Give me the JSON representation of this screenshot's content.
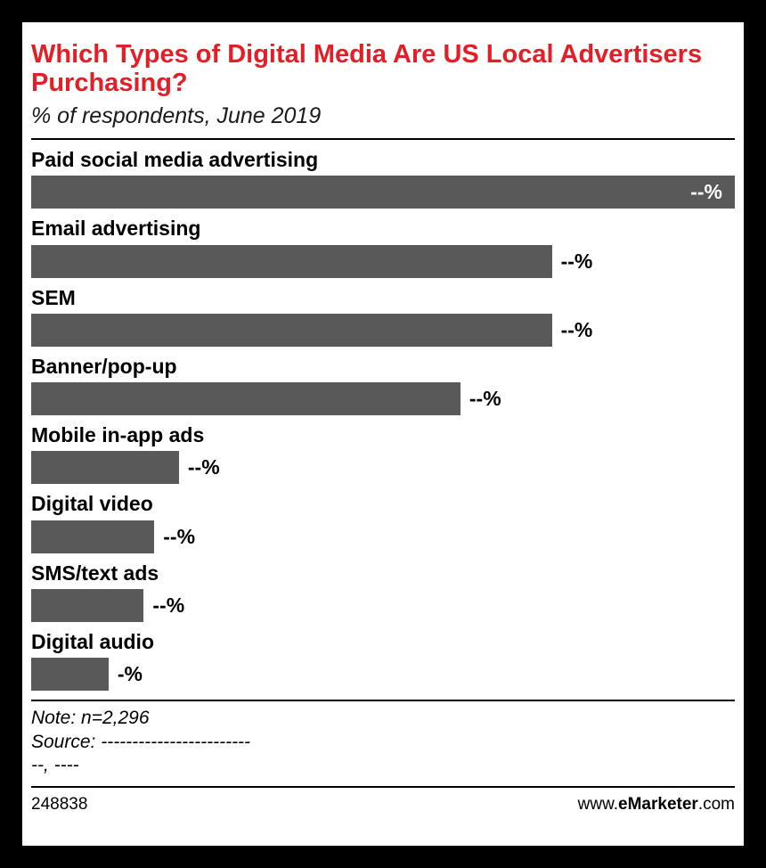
{
  "chart_data": {
    "type": "bar",
    "orientation": "horizontal",
    "title": "Which Types of Digital Media Are US Local Advertisers Purchasing?",
    "subtitle": "% of respondents, June 2019",
    "categories": [
      "Paid social media advertising",
      "Email advertising",
      "SEM",
      "Banner/pop-up",
      "Mobile in-app ads",
      "Digital video",
      "SMS/text ads",
      "Digital audio"
    ],
    "value_labels": [
      "--%",
      "--%",
      "--%",
      "--%",
      "--%",
      "--%",
      "--%",
      "-%"
    ],
    "bar_lengths_pct_of_plot": [
      100,
      74,
      74,
      61,
      21,
      17.5,
      16,
      11
    ],
    "bar_color": "#595959",
    "accent_color": "#e41e26",
    "grid": false,
    "legend": "none"
  },
  "notes": {
    "note_line": "Note: n=2,296",
    "source_line": "Source: ------------------------",
    "source_line2": "--, ----"
  },
  "footer": {
    "chart_id": "248838",
    "site_prefix": "www.",
    "site_brand": "eMarketer",
    "site_suffix": ".com"
  }
}
